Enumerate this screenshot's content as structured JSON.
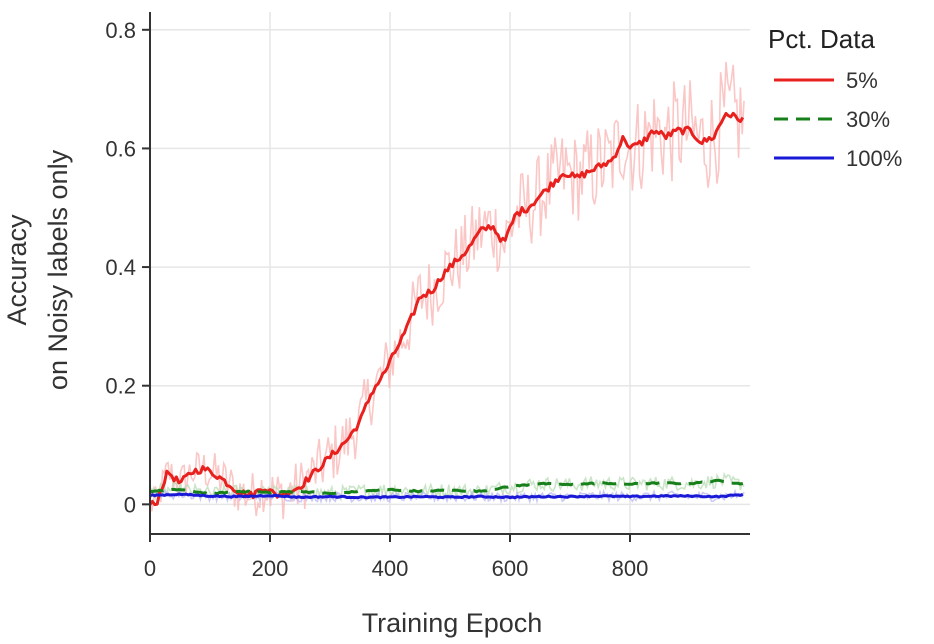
{
  "chart_data": {
    "type": "line",
    "title": "",
    "xlabel": "Training Epoch",
    "ylabel_lines": [
      "Accuracy",
      "on Noisy labels only"
    ],
    "xlim": [
      0,
      1000
    ],
    "ylim": [
      -0.05,
      0.83
    ],
    "x_ticks": [
      0,
      200,
      400,
      600,
      800
    ],
    "x_tick_labels": [
      "0",
      "200",
      "400",
      "600",
      "800"
    ],
    "y_ticks": [
      0,
      0.2,
      0.4,
      0.6,
      0.8
    ],
    "y_tick_labels": [
      "0",
      "0.2",
      "0.4",
      "0.6",
      "0.8"
    ],
    "grid": true,
    "legend": {
      "title": "Pct. Data",
      "position": "top-right-outside"
    },
    "series": [
      {
        "name": "5%",
        "color": "#e8201e",
        "raw_color": "#f8b4b3",
        "dash": "solid",
        "noise": 0.06,
        "x": [
          0,
          10,
          20,
          30,
          50,
          70,
          90,
          110,
          130,
          150,
          170,
          190,
          210,
          230,
          250,
          270,
          290,
          310,
          330,
          350,
          370,
          390,
          410,
          430,
          450,
          470,
          490,
          510,
          530,
          550,
          570,
          590,
          610,
          630,
          650,
          670,
          690,
          710,
          730,
          750,
          770,
          790,
          800,
          820,
          840,
          860,
          880,
          900,
          920,
          940,
          960,
          980
        ],
        "y": [
          0.0,
          0.0,
          0.03,
          0.055,
          0.035,
          0.055,
          0.06,
          0.05,
          0.035,
          0.02,
          0.015,
          0.03,
          0.015,
          0.02,
          0.03,
          0.05,
          0.07,
          0.09,
          0.11,
          0.14,
          0.19,
          0.22,
          0.26,
          0.3,
          0.35,
          0.36,
          0.39,
          0.41,
          0.43,
          0.46,
          0.47,
          0.44,
          0.49,
          0.5,
          0.52,
          0.54,
          0.56,
          0.55,
          0.56,
          0.57,
          0.58,
          0.62,
          0.6,
          0.61,
          0.63,
          0.62,
          0.63,
          0.63,
          0.61,
          0.62,
          0.66,
          0.65
        ]
      },
      {
        "name": "30%",
        "color": "#17801a",
        "raw_color": "#b8dcb6",
        "dash": "14 8",
        "noise": 0.012,
        "x": [
          0,
          50,
          100,
          150,
          200,
          250,
          300,
          350,
          400,
          450,
          500,
          550,
          600,
          650,
          700,
          750,
          800,
          850,
          900,
          950,
          980
        ],
        "y": [
          0.022,
          0.025,
          0.018,
          0.022,
          0.02,
          0.022,
          0.018,
          0.022,
          0.025,
          0.022,
          0.024,
          0.022,
          0.03,
          0.035,
          0.033,
          0.036,
          0.034,
          0.036,
          0.035,
          0.04,
          0.035
        ]
      },
      {
        "name": "100%",
        "color": "#1a1ad6",
        "raw_color": "#b8b8f0",
        "dash": "solid",
        "noise": 0.008,
        "x": [
          0,
          50,
          100,
          150,
          200,
          250,
          300,
          350,
          400,
          450,
          500,
          550,
          600,
          650,
          700,
          750,
          800,
          850,
          900,
          950,
          980
        ],
        "y": [
          0.015,
          0.017,
          0.014,
          0.013,
          0.015,
          0.012,
          0.013,
          0.012,
          0.012,
          0.013,
          0.012,
          0.013,
          0.012,
          0.013,
          0.013,
          0.014,
          0.013,
          0.014,
          0.014,
          0.013,
          0.016
        ]
      }
    ]
  }
}
